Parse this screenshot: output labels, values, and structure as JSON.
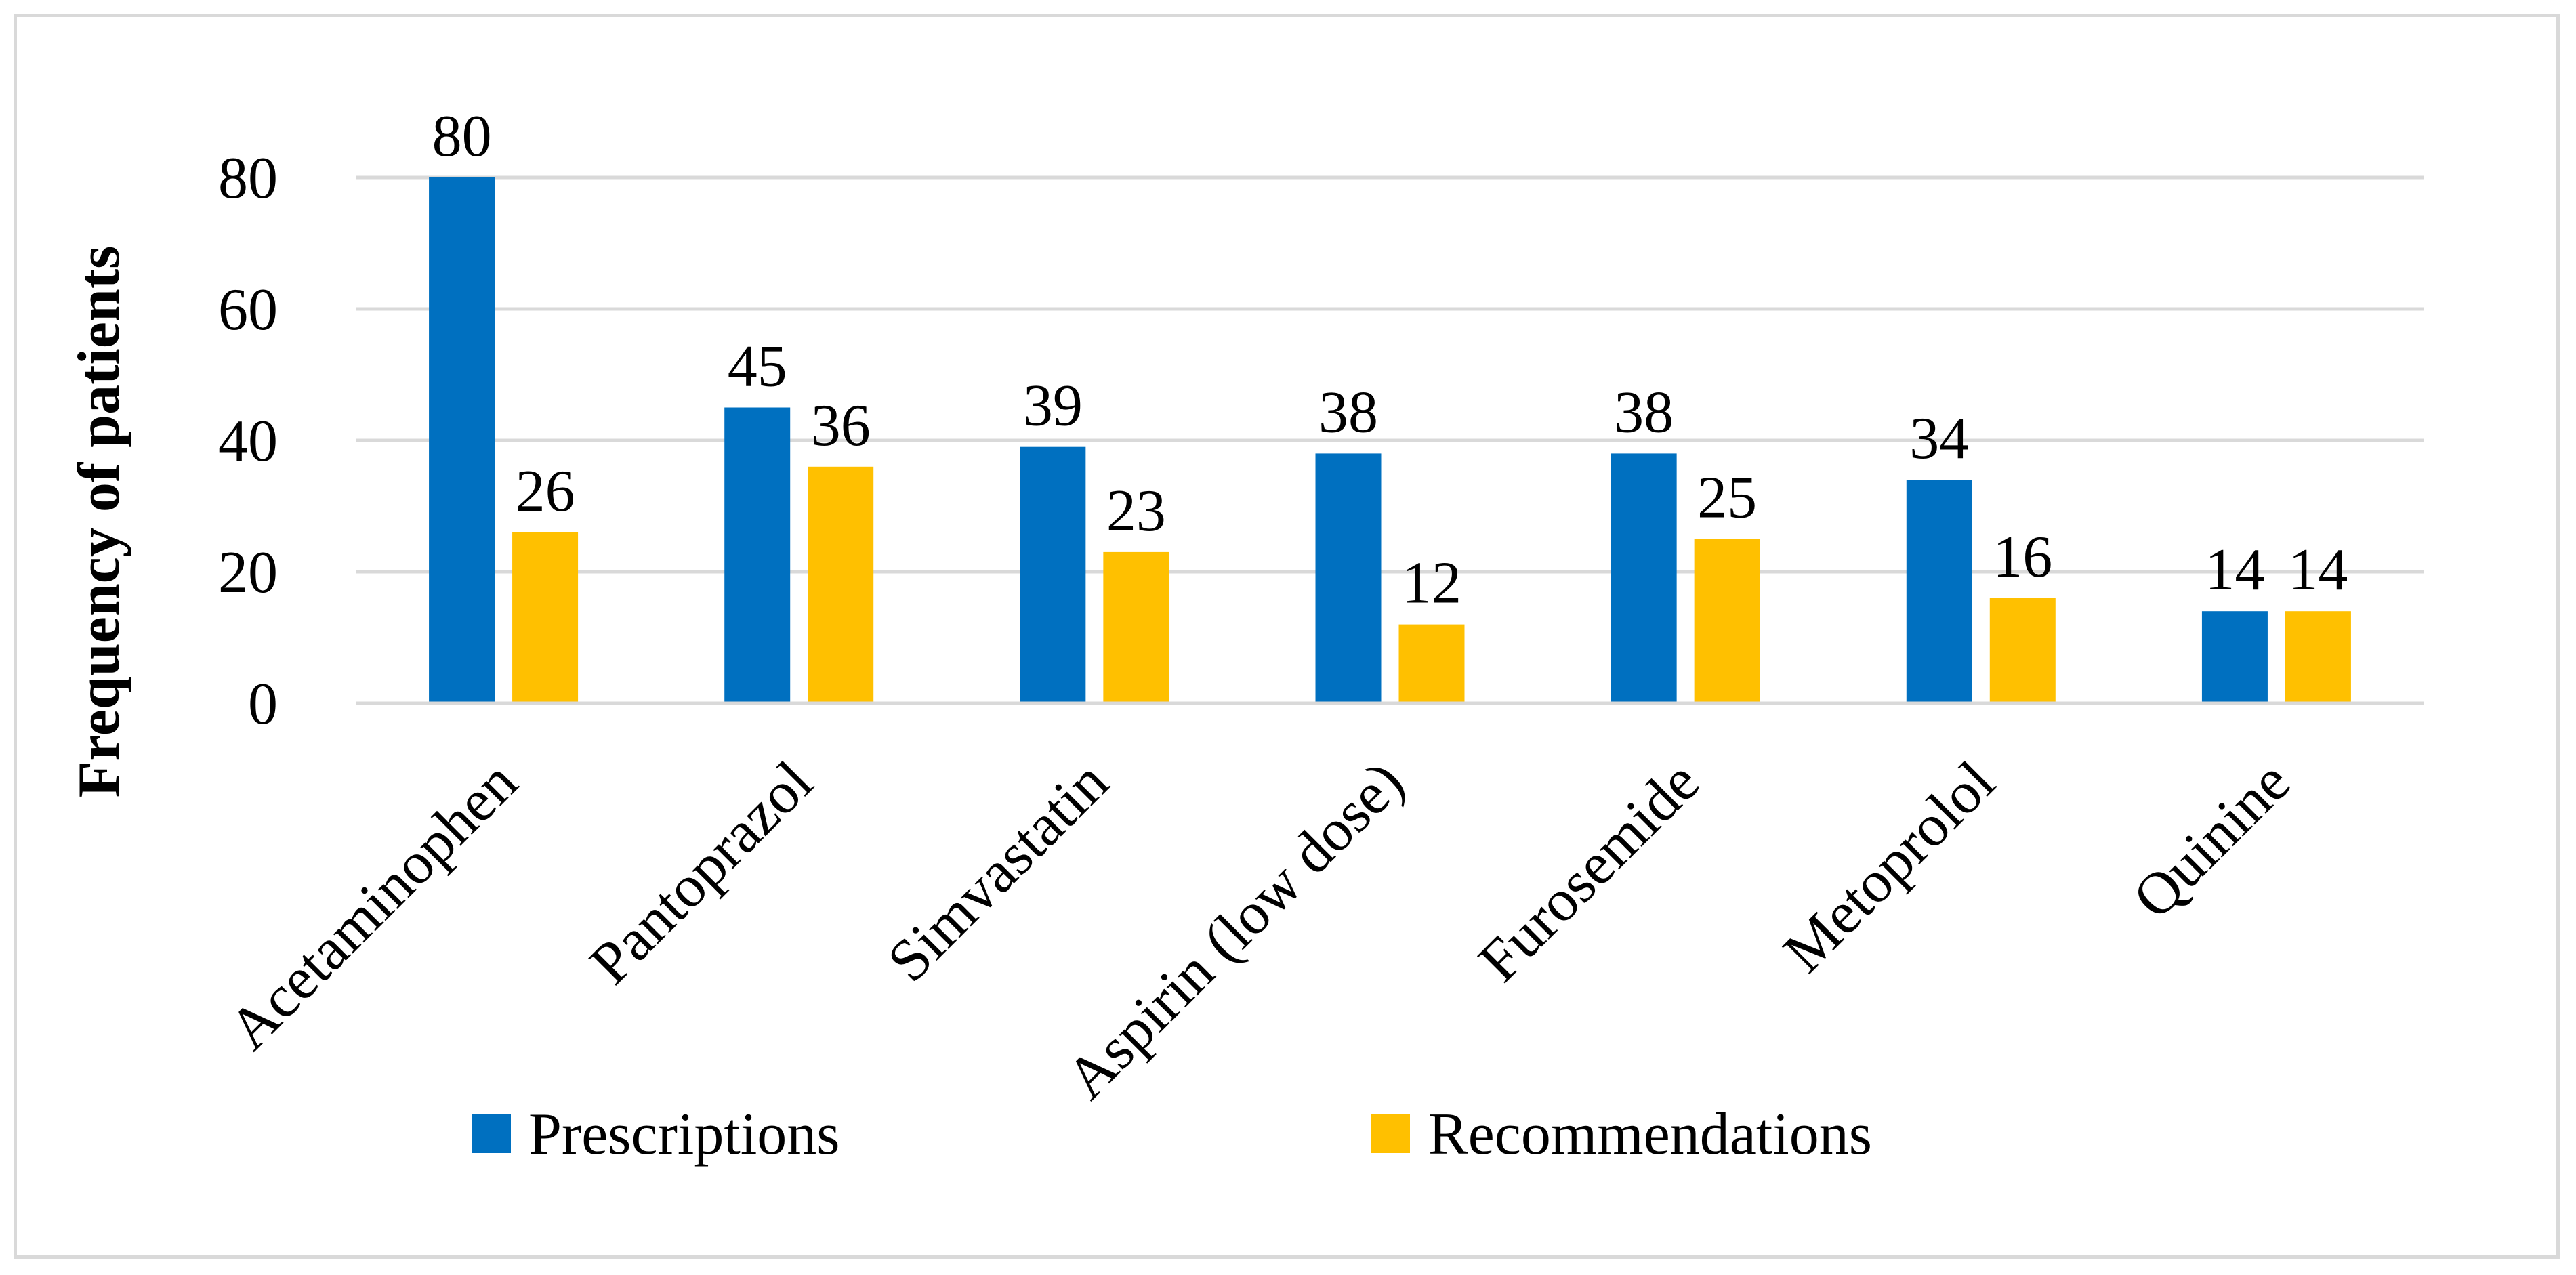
{
  "chart_data": {
    "type": "bar",
    "title": "",
    "xlabel": "",
    "ylabel": "Frequency of patients",
    "ylim": [
      0,
      90
    ],
    "yticks": [
      0,
      20,
      40,
      60,
      80
    ],
    "grid": true,
    "legend_position": "bottom",
    "categories": [
      "Acetaminophen",
      "Pantoprazol",
      "Simvastatin",
      "Aspirin (low dose)",
      "Furosemide",
      "Metoprolol",
      "Quinine"
    ],
    "series": [
      {
        "name": "Prescriptions",
        "color": "#0070c0",
        "values": [
          80,
          45,
          39,
          38,
          38,
          34,
          14
        ]
      },
      {
        "name": "Recommendations",
        "color": "#ffc000",
        "values": [
          26,
          36,
          23,
          12,
          25,
          16,
          14
        ]
      }
    ]
  }
}
